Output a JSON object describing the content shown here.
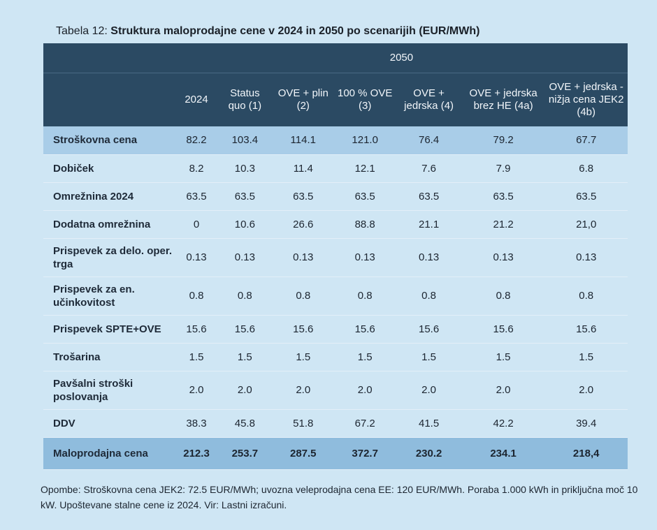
{
  "caption": {
    "prefix": "Tabela 12: ",
    "title": "Struktura maloprodajne cene v 2024 in 2050 po scenarijih (EUR/MWh)"
  },
  "table": {
    "group_header": "2050",
    "columns": [
      "2024",
      "Status quo (1)",
      "OVE + plin (2)",
      "100 % OVE (3)",
      "OVE + jedrska (4)",
      "OVE + jedrska brez HE (4a)",
      "OVE + jedrska - nižja cena JEK2 (4b)"
    ],
    "rows": [
      {
        "label": "Stroškovna cena",
        "values": [
          "82.2",
          "103.4",
          "114.1",
          "121.0",
          "76.4",
          "79.2",
          "67.7"
        ]
      },
      {
        "label": "Dobiček",
        "values": [
          "8.2",
          "10.3",
          "11.4",
          "12.1",
          "7.6",
          "7.9",
          "6.8"
        ]
      },
      {
        "label": "Omrežnina 2024",
        "values": [
          "63.5",
          "63.5",
          "63.5",
          "63.5",
          "63.5",
          "63.5",
          "63.5"
        ]
      },
      {
        "label": "Dodatna omrežnina",
        "values": [
          "0",
          "10.6",
          "26.6",
          "88.8",
          "21.1",
          "21.2",
          "21,0"
        ]
      },
      {
        "label": "Prispevek za delo. oper. trga",
        "values": [
          "0.13",
          "0.13",
          "0.13",
          "0.13",
          "0.13",
          "0.13",
          "0.13"
        ]
      },
      {
        "label": "Prispevek za en. učinkovitost",
        "values": [
          "0.8",
          "0.8",
          "0.8",
          "0.8",
          "0.8",
          "0.8",
          "0.8"
        ]
      },
      {
        "label": "Prispevek SPTE+OVE",
        "values": [
          "15.6",
          "15.6",
          "15.6",
          "15.6",
          "15.6",
          "15.6",
          "15.6"
        ]
      },
      {
        "label": "Trošarina",
        "values": [
          "1.5",
          "1.5",
          "1.5",
          "1.5",
          "1.5",
          "1.5",
          "1.5"
        ]
      },
      {
        "label": "Pavšalni stroški poslovanja",
        "values": [
          "2.0",
          "2.0",
          "2.0",
          "2.0",
          "2.0",
          "2.0",
          "2.0"
        ]
      },
      {
        "label": "DDV",
        "values": [
          "38.3",
          "45.8",
          "51.8",
          "67.2",
          "41.5",
          "42.2",
          "39.4"
        ]
      },
      {
        "label": "Maloprodajna cena",
        "values": [
          "212.3",
          "253.7",
          "287.5",
          "372.7",
          "230.2",
          "234.1",
          "218,4"
        ]
      }
    ]
  },
  "notes": "Opombe: Stroškovna cena JEK2: 72.5 EUR/MWh; uvozna veleprodajna cena EE: 120 EUR/MWh. Poraba 1.000 kWh in priključna moč 10 kW. Upoštevane stalne cene iz 2024. Vir: Lastni izračuni."
}
